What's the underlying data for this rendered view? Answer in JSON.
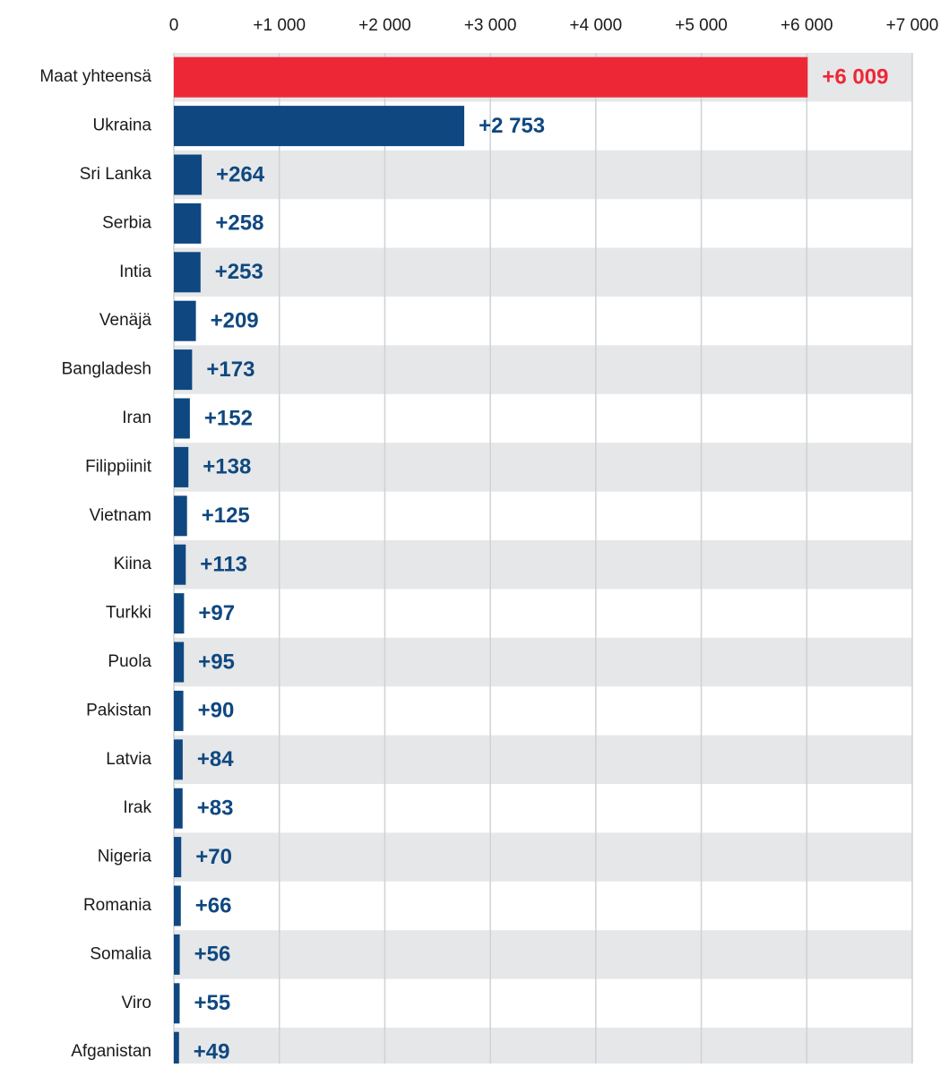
{
  "chart_data": {
    "type": "bar",
    "orientation": "horizontal",
    "xlim": [
      0,
      7000
    ],
    "x_ticks": [
      0,
      1000,
      2000,
      3000,
      4000,
      5000,
      6000,
      7000
    ],
    "x_tick_labels": [
      "0",
      "+1 000",
      "+2 000",
      "+3 000",
      "+4 000",
      "+5 000",
      "+6 000",
      "+7 000"
    ],
    "tick_position": "top",
    "grid": true,
    "categories": [
      "Maat yhteensä",
      "Ukraina",
      "Sri Lanka",
      "Serbia",
      "Intia",
      "Venäjä",
      "Bangladesh",
      "Iran",
      "Filippiinit",
      "Vietnam",
      "Kiina",
      "Turkki",
      "Puola",
      "Pakistan",
      "Latvia",
      "Irak",
      "Nigeria",
      "Romania",
      "Somalia",
      "Viro",
      "Afganistan"
    ],
    "values": [
      6009,
      2753,
      264,
      258,
      253,
      209,
      173,
      152,
      138,
      125,
      113,
      97,
      95,
      90,
      84,
      83,
      70,
      66,
      56,
      55,
      49
    ],
    "value_labels": [
      "+6 009",
      "+2 753",
      "+264",
      "+258",
      "+253",
      "+209",
      "+173",
      "+152",
      "+138",
      "+125",
      "+113",
      "+97",
      "+95",
      "+90",
      "+84",
      "+83",
      "+70",
      "+66",
      "+56",
      "+55",
      "+49"
    ],
    "highlight_index": 0,
    "colors": {
      "highlight": "#ee2737",
      "bar": "#0f4880",
      "highlight_text": "#ee2737",
      "bar_text": "#0f4880",
      "row_band": "#e6e7e9",
      "grid": "#cfd1d3"
    }
  }
}
